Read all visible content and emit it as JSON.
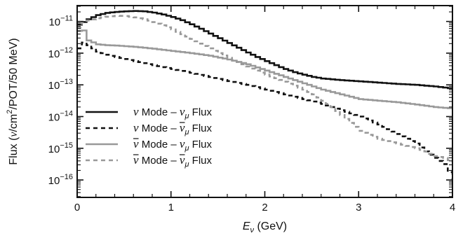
{
  "chart_data": {
    "type": "line",
    "xlabel": "E",
    "xlabel_sub": "ν",
    "xlabel_unit": " (GeV)",
    "ylabel": "Flux  (ν/cm²/POT/50 MeV)",
    "ylabel_parts": {
      "prefix": "Flux  (",
      "nu": "ν",
      "mid": "/cm",
      "sup": "2",
      "rest": "/POT/50 MeV)"
    },
    "xlim": [
      0,
      4
    ],
    "ylim_log10": [
      -16.55,
      -10.5
    ],
    "y_scale": "log",
    "xticks": [
      {
        "value": 0,
        "label": "0"
      },
      {
        "value": 1,
        "label": "1"
      },
      {
        "value": 2,
        "label": "2"
      },
      {
        "value": 3,
        "label": "3"
      },
      {
        "value": 4,
        "label": "4"
      }
    ],
    "yticks": [
      {
        "exp": -11,
        "mant": "10",
        "sup": "−11"
      },
      {
        "exp": -12,
        "mant": "10",
        "sup": "−12"
      },
      {
        "exp": -13,
        "mant": "10",
        "sup": "−13"
      },
      {
        "exp": -14,
        "mant": "10",
        "sup": "−14"
      },
      {
        "exp": -15,
        "mant": "10",
        "sup": "−15"
      },
      {
        "exp": -16,
        "mant": "10",
        "sup": "−16"
      }
    ],
    "legend_position": "lower-left",
    "series": [
      {
        "name": "ν Mode – νμ Flux",
        "legend": {
          "mode": "ν",
          "mode_bar": false,
          "flavor": "ν",
          "flavor_sub": "μ",
          "flavor_bar": false,
          "text1": " Mode – ",
          "text2": " Flux"
        },
        "color": "#111111",
        "dash": "",
        "width": 2.6,
        "points": [
          [
            0,
            -11.1
          ],
          [
            0.03,
            -11.05
          ],
          [
            0.1,
            -10.93
          ],
          [
            0.2,
            -10.8
          ],
          [
            0.3,
            -10.73
          ],
          [
            0.4,
            -10.7
          ],
          [
            0.5,
            -10.68
          ],
          [
            0.6,
            -10.67
          ],
          [
            0.7,
            -10.68
          ],
          [
            0.8,
            -10.72
          ],
          [
            0.9,
            -10.78
          ],
          [
            1.0,
            -10.86
          ],
          [
            1.1,
            -10.96
          ],
          [
            1.2,
            -11.09
          ],
          [
            1.3,
            -11.23
          ],
          [
            1.4,
            -11.38
          ],
          [
            1.5,
            -11.53
          ],
          [
            1.6,
            -11.68
          ],
          [
            1.7,
            -11.83
          ],
          [
            1.8,
            -11.98
          ],
          [
            1.9,
            -12.12
          ],
          [
            2.0,
            -12.25
          ],
          [
            2.1,
            -12.38
          ],
          [
            2.2,
            -12.5
          ],
          [
            2.3,
            -12.6
          ],
          [
            2.4,
            -12.68
          ],
          [
            2.5,
            -12.75
          ],
          [
            2.6,
            -12.8
          ],
          [
            2.8,
            -12.85
          ],
          [
            3.0,
            -12.89
          ],
          [
            3.2,
            -12.93
          ],
          [
            3.4,
            -12.97
          ],
          [
            3.6,
            -13.0
          ],
          [
            3.8,
            -13.05
          ],
          [
            4.0,
            -13.12
          ]
        ]
      },
      {
        "name": "ν Mode – ν̄μ Flux",
        "legend": {
          "mode": "ν",
          "mode_bar": false,
          "flavor": "ν",
          "flavor_sub": "μ",
          "flavor_bar": true,
          "text1": " Mode – ",
          "text2": " Flux"
        },
        "color": "#111111",
        "dash": "6,5",
        "width": 2.6,
        "points": [
          [
            0,
            -11.85
          ],
          [
            0.03,
            -11.6
          ],
          [
            0.06,
            -11.7
          ],
          [
            0.1,
            -11.75
          ],
          [
            0.2,
            -11.95
          ],
          [
            0.3,
            -12.05
          ],
          [
            0.4,
            -12.12
          ],
          [
            0.6,
            -12.25
          ],
          [
            0.8,
            -12.38
          ],
          [
            1.0,
            -12.5
          ],
          [
            1.2,
            -12.62
          ],
          [
            1.4,
            -12.75
          ],
          [
            1.6,
            -12.88
          ],
          [
            1.8,
            -13.0
          ],
          [
            2.0,
            -13.15
          ],
          [
            2.2,
            -13.3
          ],
          [
            2.4,
            -13.45
          ],
          [
            2.6,
            -13.6
          ],
          [
            2.8,
            -13.8
          ],
          [
            3.0,
            -14.0
          ],
          [
            3.2,
            -14.25
          ],
          [
            3.4,
            -14.55
          ],
          [
            3.6,
            -14.85
          ],
          [
            3.7,
            -15.1
          ],
          [
            3.8,
            -15.3
          ],
          [
            3.9,
            -15.5
          ],
          [
            4.0,
            -16.0
          ]
        ]
      },
      {
        "name": "ν̄ Mode – νμ Flux",
        "legend": {
          "mode": "ν",
          "mode_bar": true,
          "flavor": "ν",
          "flavor_sub": "μ",
          "flavor_bar": false,
          "text1": " Mode – ",
          "text2": " Flux"
        },
        "color": "#999999",
        "dash": "",
        "width": 2.6,
        "points": [
          [
            0,
            -11.3
          ],
          [
            0.03,
            -11.15
          ],
          [
            0.06,
            -11.35
          ],
          [
            0.1,
            -11.6
          ],
          [
            0.2,
            -11.72
          ],
          [
            0.3,
            -11.75
          ],
          [
            0.4,
            -11.76
          ],
          [
            0.5,
            -11.78
          ],
          [
            0.6,
            -11.8
          ],
          [
            0.8,
            -11.86
          ],
          [
            1.0,
            -11.93
          ],
          [
            1.2,
            -12.0
          ],
          [
            1.4,
            -12.08
          ],
          [
            1.6,
            -12.2
          ],
          [
            1.8,
            -12.35
          ],
          [
            2.0,
            -12.55
          ],
          [
            2.2,
            -12.75
          ],
          [
            2.4,
            -12.95
          ],
          [
            2.6,
            -13.15
          ],
          [
            2.8,
            -13.3
          ],
          [
            3.0,
            -13.45
          ],
          [
            3.2,
            -13.5
          ],
          [
            3.4,
            -13.55
          ],
          [
            3.6,
            -13.62
          ],
          [
            3.8,
            -13.7
          ],
          [
            4.0,
            -13.75
          ]
        ]
      },
      {
        "name": "ν̄ Mode – ν̄μ Flux",
        "legend": {
          "mode": "ν",
          "mode_bar": true,
          "flavor": "ν",
          "flavor_sub": "μ",
          "flavor_bar": true,
          "text1": " Mode – ",
          "text2": " Flux"
        },
        "color": "#999999",
        "dash": "6,5",
        "width": 2.6,
        "points": [
          [
            0,
            -11.2
          ],
          [
            0.03,
            -11.05
          ],
          [
            0.1,
            -10.97
          ],
          [
            0.2,
            -10.9
          ],
          [
            0.3,
            -10.85
          ],
          [
            0.4,
            -10.82
          ],
          [
            0.5,
            -10.83
          ],
          [
            0.6,
            -10.87
          ],
          [
            0.7,
            -10.93
          ],
          [
            0.8,
            -11.02
          ],
          [
            0.9,
            -11.12
          ],
          [
            1.0,
            -11.25
          ],
          [
            1.1,
            -11.4
          ],
          [
            1.2,
            -11.55
          ],
          [
            1.3,
            -11.7
          ],
          [
            1.4,
            -11.85
          ],
          [
            1.5,
            -12.0
          ],
          [
            1.6,
            -12.15
          ],
          [
            1.7,
            -12.28
          ],
          [
            1.8,
            -12.42
          ],
          [
            1.9,
            -12.55
          ],
          [
            2.0,
            -12.68
          ],
          [
            2.2,
            -12.9
          ],
          [
            2.4,
            -13.15
          ],
          [
            2.5,
            -13.3
          ],
          [
            2.6,
            -13.5
          ],
          [
            2.7,
            -13.7
          ],
          [
            2.8,
            -13.95
          ],
          [
            2.9,
            -14.2
          ],
          [
            3.0,
            -14.45
          ],
          [
            3.2,
            -14.7
          ],
          [
            3.4,
            -14.85
          ],
          [
            3.6,
            -15.0
          ],
          [
            3.7,
            -15.1
          ],
          [
            3.8,
            -15.25
          ],
          [
            3.9,
            -15.3
          ],
          [
            4.0,
            -15.45
          ]
        ]
      }
    ]
  }
}
